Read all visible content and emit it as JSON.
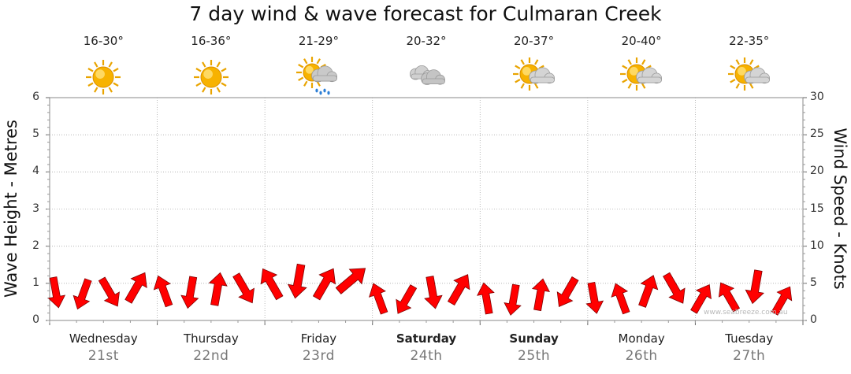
{
  "chart_data": {
    "type": "line",
    "title": "7 day wind & wave forecast for Culmaran Creek",
    "ylabel_left": "Wave Height - Metres",
    "ylabel_right": "Wind Speed - Knots",
    "ylim_left": [
      0,
      6
    ],
    "ylim_right": [
      0,
      30
    ],
    "yticks_left": [
      "0",
      "1",
      "2",
      "3",
      "4",
      "5",
      "6"
    ],
    "yticks_right": [
      "0",
      "5",
      "10",
      "15",
      "20",
      "25",
      "30"
    ],
    "grid": true,
    "days": [
      {
        "name": "Wednesday",
        "date": "21st",
        "temp": "16-30°",
        "icon": "sunny-icon",
        "bold": false
      },
      {
        "name": "Thursday",
        "date": "22nd",
        "temp": "16-36°",
        "icon": "sunny-icon",
        "bold": false
      },
      {
        "name": "Friday",
        "date": "23rd",
        "temp": "21-29°",
        "icon": "sun-cloud-rain-icon",
        "bold": false
      },
      {
        "name": "Saturday",
        "date": "24th",
        "temp": "20-32°",
        "icon": "cloudy-icon",
        "bold": true
      },
      {
        "name": "Sunday",
        "date": "25th",
        "temp": "20-37°",
        "icon": "partly-cloudy-icon",
        "bold": true
      },
      {
        "name": "Monday",
        "date": "26th",
        "temp": "20-40°",
        "icon": "partly-cloudy-icon",
        "bold": false
      },
      {
        "name": "Tuesday",
        "date": "27th",
        "temp": "22-35°",
        "icon": "partly-cloudy-icon",
        "bold": false
      }
    ],
    "wind_series": {
      "name": "Wind",
      "color": "#ff0000",
      "x_days": [
        0.0,
        0.25,
        0.5,
        0.75,
        1.0,
        1.25,
        1.5,
        1.75,
        2.0,
        2.25,
        2.5,
        2.75,
        3.0,
        3.25,
        3.5,
        3.75,
        4.0,
        4.25,
        4.5,
        4.75,
        5.0,
        5.25,
        5.5,
        5.75,
        6.0,
        6.25,
        6.5,
        6.75
      ],
      "speed_knots": [
        4.2,
        4.5,
        4.8,
        6.2,
        5.0,
        5.0,
        6.0,
        5.5,
        6.5,
        7.0,
        6.8,
        7.8,
        4.8,
        4.5,
        5.5,
        6.2,
        4.5,
        4.2,
        5.0,
        5.5,
        4.5,
        4.5,
        5.8,
        6.2,
        4.5,
        4.8,
        6.5,
        4.2
      ],
      "wave_m": [
        0.75,
        0.7,
        0.75,
        0.9,
        0.8,
        0.75,
        0.85,
        0.85,
        1.0,
        1.05,
        1.0,
        1.1,
        0.6,
        0.55,
        0.75,
        0.85,
        0.6,
        0.55,
        0.7,
        0.75,
        0.6,
        0.6,
        0.8,
        0.85,
        0.6,
        0.65,
        0.9,
        0.55
      ],
      "direction_deg": [
        80,
        110,
        60,
        300,
        250,
        100,
        280,
        60,
        240,
        100,
        300,
        320,
        250,
        120,
        80,
        300,
        260,
        100,
        280,
        120,
        80,
        250,
        290,
        60,
        300,
        240,
        100,
        300
      ]
    },
    "watermark": "www.seabreeze.com.au"
  }
}
